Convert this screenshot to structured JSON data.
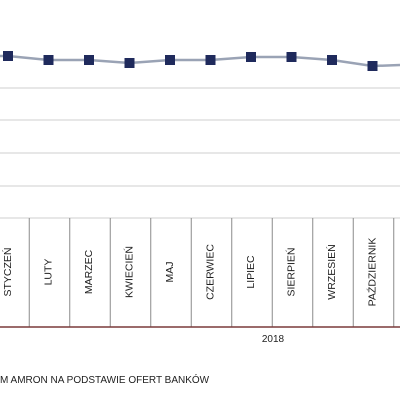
{
  "chart_data": {
    "type": "line",
    "categories": [
      "STYCZEŃ",
      "LUTY",
      "MARZEC",
      "KWIECIEŃ",
      "MAJ",
      "CZERWIEC",
      "LIPIEC",
      "SIERPIEŃ",
      "WRZESIEŃ",
      "PAŹDZIERNIK"
    ],
    "series": [
      {
        "values": [
          56,
          60,
          60,
          63,
          60,
          60,
          57,
          57,
          60,
          66
        ]
      }
    ],
    "year_label": "2018",
    "source_note": "M AMRON NA PODSTAWIE OFERT BANKÓW",
    "grid": true,
    "colors": {
      "line": "#9aa3b5",
      "marker": "#1f2a5c",
      "axis": "#7a3a3a",
      "grid": "#cfcfcf",
      "separator": "#8a8a8a"
    }
  }
}
